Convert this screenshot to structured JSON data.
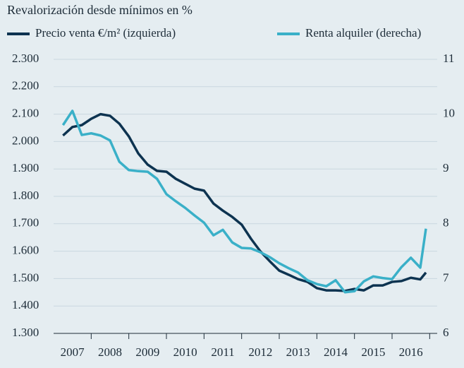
{
  "chart_data": {
    "type": "line",
    "title": "Revalorización desde mínimos en %",
    "x": [
      2007.25,
      2007.5,
      2007.75,
      2008.0,
      2008.25,
      2008.5,
      2008.75,
      2009.0,
      2009.25,
      2009.5,
      2009.75,
      2010.0,
      2010.25,
      2010.5,
      2010.75,
      2011.0,
      2011.25,
      2011.5,
      2011.75,
      2012.0,
      2012.25,
      2012.5,
      2012.75,
      2013.0,
      2013.25,
      2013.5,
      2013.75,
      2014.0,
      2014.25,
      2014.5,
      2014.75,
      2015.0,
      2015.25,
      2015.5,
      2015.75,
      2016.0,
      2016.25,
      2016.5,
      2016.75,
      2016.9
    ],
    "series": [
      {
        "name": "Precio venta €/m² (izquierda)",
        "color": "#0d3350",
        "axis": "y",
        "values": [
          2022,
          2053,
          2060,
          2083,
          2100,
          2094,
          2065,
          2019,
          1957,
          1916,
          1893,
          1890,
          1864,
          1846,
          1828,
          1821,
          1774,
          1748,
          1725,
          1697,
          1645,
          1599,
          1563,
          1529,
          1514,
          1498,
          1488,
          1465,
          1457,
          1457,
          1455,
          1462,
          1457,
          1475,
          1475,
          1488,
          1491,
          1503,
          1497,
          1522
        ]
      },
      {
        "name": "Renta alquiler (derecha)",
        "color": "#3ab0c8",
        "axis": "y2",
        "values": [
          9.8,
          10.06,
          9.62,
          9.65,
          9.61,
          9.52,
          9.13,
          8.98,
          8.96,
          8.95,
          8.82,
          8.54,
          8.41,
          8.29,
          8.15,
          8.02,
          7.79,
          7.89,
          7.66,
          7.56,
          7.55,
          7.48,
          7.39,
          7.28,
          7.19,
          7.11,
          6.97,
          6.9,
          6.86,
          6.97,
          6.75,
          6.77,
          6.95,
          7.04,
          7.01,
          6.99,
          7.21,
          7.38,
          7.2,
          7.91
        ]
      }
    ],
    "xlim": [
      2007,
      2017.2
    ],
    "xticks": [
      {
        "value": 2007.5,
        "label": "2007"
      },
      {
        "value": 2008.5,
        "label": "2008"
      },
      {
        "value": 2009.5,
        "label": "2009"
      },
      {
        "value": 2010.5,
        "label": "2010"
      },
      {
        "value": 2011.5,
        "label": "2011"
      },
      {
        "value": 2012.5,
        "label": "2012"
      },
      {
        "value": 2013.5,
        "label": "2013"
      },
      {
        "value": 2014.5,
        "label": "2014"
      },
      {
        "value": 2015.5,
        "label": "2015"
      },
      {
        "value": 2016.5,
        "label": "2016"
      }
    ],
    "ylim": [
      1300,
      2300
    ],
    "yticks": [
      {
        "value": 1300,
        "label": "1.300"
      },
      {
        "value": 1400,
        "label": "1.400"
      },
      {
        "value": 1500,
        "label": "1.500"
      },
      {
        "value": 1600,
        "label": "1.600"
      },
      {
        "value": 1700,
        "label": "1.700"
      },
      {
        "value": 1800,
        "label": "1.800"
      },
      {
        "value": 1900,
        "label": "1.900"
      },
      {
        "value": 2000,
        "label": "2.000"
      },
      {
        "value": 2100,
        "label": "2.100"
      },
      {
        "value": 2200,
        "label": "2.200"
      },
      {
        "value": 2300,
        "label": "2.300"
      }
    ],
    "y2lim": [
      6,
      11
    ],
    "y2ticks": [
      6,
      7,
      8,
      9,
      10,
      11
    ],
    "grid": true
  }
}
